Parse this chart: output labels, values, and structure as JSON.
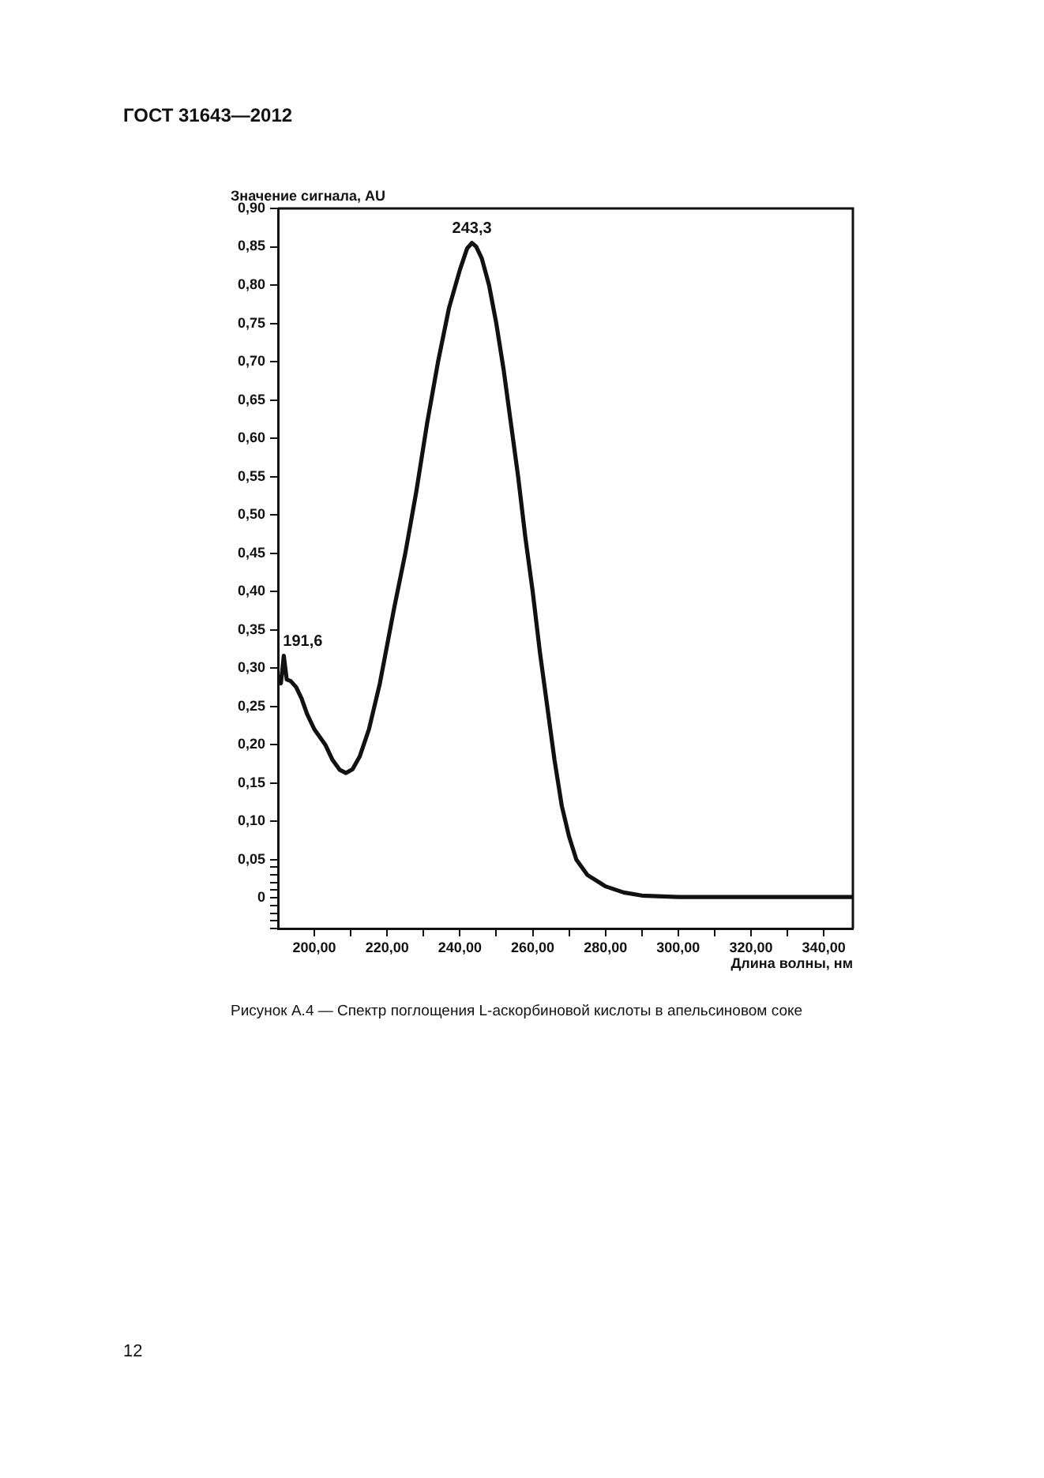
{
  "chart_data": {
    "type": "line",
    "title": "Рисунок А.4 — Спектр поглощения L-аскорбиновой кислоты в апельсиновом соке",
    "xlabel": "Длина волны, нм",
    "ylabel": "Значение сигнала, AU",
    "annotations": [
      "ГОСТ 31643—2012",
      "12",
      {
        "text": "243,3",
        "x": 243.3,
        "y": 0.855
      },
      {
        "text": "191,6",
        "x": 191.6,
        "y": 0.316
      }
    ],
    "series": [
      {
        "color": "#111111",
        "x": [
          190,
          190.8,
          191.6,
          192.4,
          193.5,
          195,
          196.5,
          198,
          200,
          201.5,
          203,
          205,
          207,
          208.7,
          210.5,
          212.5,
          215,
          218,
          220,
          222,
          225,
          228,
          231,
          234,
          237,
          240,
          242,
          243.3,
          244.5,
          246,
          248,
          250,
          252,
          254,
          256,
          258,
          260,
          262,
          264,
          266,
          268,
          270,
          272,
          275,
          280,
          285,
          290,
          300,
          320,
          348
        ],
        "values": [
          0.29,
          0.28,
          0.316,
          0.285,
          0.283,
          0.275,
          0.26,
          0.24,
          0.22,
          0.21,
          0.2,
          0.18,
          0.167,
          0.163,
          0.168,
          0.185,
          0.22,
          0.28,
          0.33,
          0.38,
          0.45,
          0.53,
          0.62,
          0.7,
          0.77,
          0.82,
          0.848,
          0.855,
          0.85,
          0.835,
          0.8,
          0.75,
          0.69,
          0.62,
          0.55,
          0.47,
          0.4,
          0.32,
          0.25,
          0.18,
          0.12,
          0.08,
          0.05,
          0.03,
          0.015,
          0.007,
          0.003,
          0.001,
          0.001,
          0.001
        ]
      }
    ],
    "xlim": [
      190,
      348
    ],
    "xticks": [
      {
        "value": 200,
        "label": "200,00"
      },
      {
        "value": 210,
        "label": null
      },
      {
        "value": 220,
        "label": "220,00"
      },
      {
        "value": 230,
        "label": null
      },
      {
        "value": 240,
        "label": "240,00"
      },
      {
        "value": 250,
        "label": null
      },
      {
        "value": 260,
        "label": "260,00"
      },
      {
        "value": 270,
        "label": null
      },
      {
        "value": 280,
        "label": "280,00"
      },
      {
        "value": 290,
        "label": null
      },
      {
        "value": 300,
        "label": "300,00"
      },
      {
        "value": 310,
        "label": null
      },
      {
        "value": 320,
        "label": "320,00"
      },
      {
        "value": 330,
        "label": null
      },
      {
        "value": 340,
        "label": "340,00"
      }
    ],
    "ylim": [
      -0.04,
      0.9
    ],
    "yticks": [
      {
        "value": -0.04,
        "label": null
      },
      {
        "value": -0.03,
        "label": null
      },
      {
        "value": -0.02,
        "label": null
      },
      {
        "value": -0.01,
        "label": null
      },
      0,
      {
        "value": 0.01,
        "label": null
      },
      {
        "value": 0.02,
        "label": null
      },
      {
        "value": 0.03,
        "label": null
      },
      {
        "value": 0.04,
        "label": null
      },
      {
        "value": 0.05,
        "label": "0,05"
      },
      {
        "value": 0.1,
        "label": "0,10"
      },
      {
        "value": 0.15,
        "label": "0,15"
      },
      {
        "value": 0.2,
        "label": "0,20"
      },
      {
        "value": 0.25,
        "label": "0,25"
      },
      {
        "value": 0.3,
        "label": "0,30"
      },
      {
        "value": 0.35,
        "label": "0,35"
      },
      {
        "value": 0.4,
        "label": "0,40"
      },
      {
        "value": 0.45,
        "label": "0,45"
      },
      {
        "value": 0.5,
        "label": "0,50"
      },
      {
        "value": 0.55,
        "label": "0,55"
      },
      {
        "value": 0.6,
        "label": "0,60"
      },
      {
        "value": 0.65,
        "label": "0,65"
      },
      {
        "value": 0.7,
        "label": "0,70"
      },
      {
        "value": 0.75,
        "label": "0,75"
      },
      {
        "value": 0.8,
        "label": "0,80"
      },
      {
        "value": 0.85,
        "label": "0,85"
      },
      {
        "value": 0.9,
        "label": "0,90"
      }
    ],
    "marker": "none",
    "line_style": "solid"
  }
}
